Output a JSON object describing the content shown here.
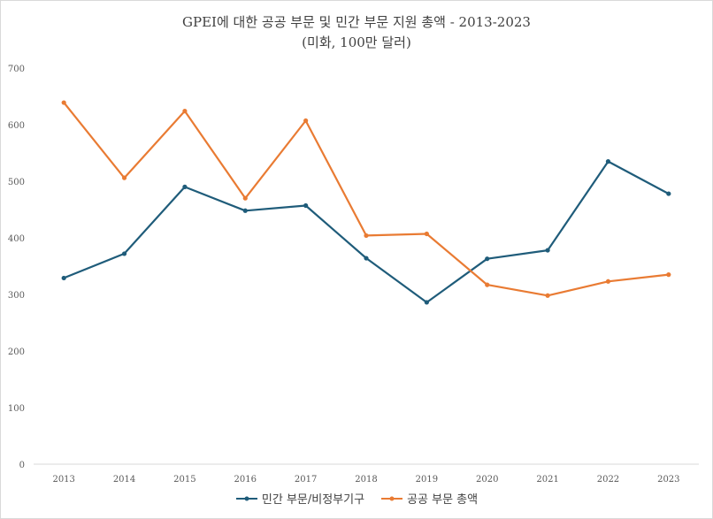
{
  "chart_data": {
    "type": "line",
    "title": "GPEI에 대한 공공 부문 및 민간 부문 지원 총액 - 2013-2023",
    "subtitle": "(미화, 100만 달러)",
    "categories": [
      "2013",
      "2014",
      "2015",
      "2016",
      "2017",
      "2018",
      "2019",
      "2020",
      "2021",
      "2022",
      "2023"
    ],
    "series": [
      {
        "name": "민간 부문/비정부기구",
        "color": "#1f5c7a",
        "values": [
          329,
          372,
          490,
          448,
          457,
          364,
          286,
          363,
          378,
          535,
          478
        ]
      },
      {
        "name": "공공 부문 총액",
        "color": "#e97b33",
        "values": [
          639,
          506,
          624,
          470,
          607,
          404,
          407,
          317,
          298,
          323,
          335
        ]
      }
    ],
    "ylim": [
      0,
      700
    ],
    "yticks": [
      0,
      100,
      200,
      300,
      400,
      500,
      600,
      700
    ],
    "grid": false,
    "legend_position": "bottom"
  }
}
